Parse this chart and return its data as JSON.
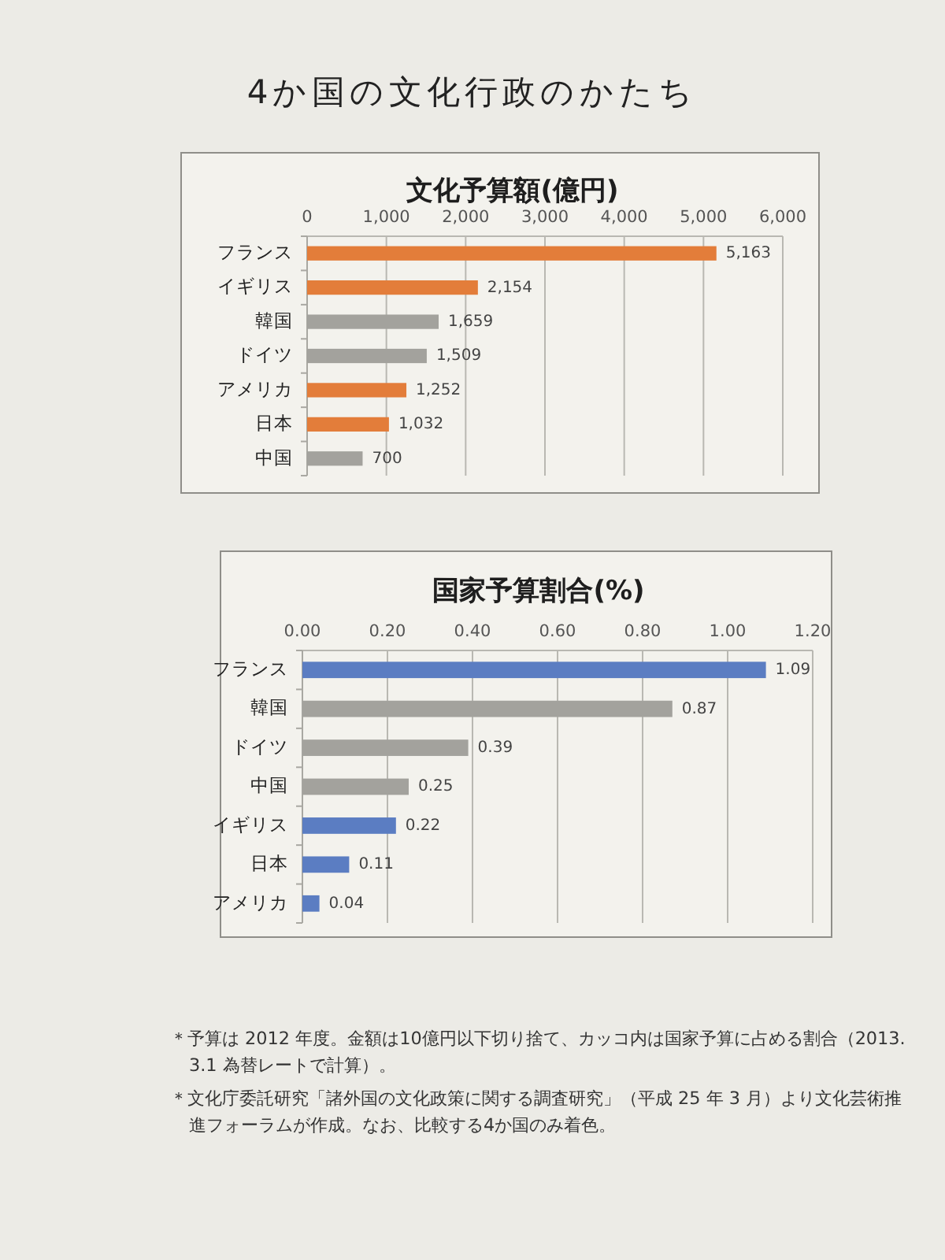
{
  "chart_data": [
    {
      "type": "bar",
      "orientation": "horizontal",
      "title": "文化予算額(億円)",
      "annotations": [
        "4か国の文化行政のかたち"
      ],
      "categories": [
        "フランス",
        "イギリス",
        "韓国",
        "ドイツ",
        "アメリカ",
        "日本",
        "中国"
      ],
      "values": [
        5163,
        2154,
        1659,
        1509,
        1252,
        1032,
        700
      ],
      "value_labels": [
        "5,163",
        "2,154",
        "1,659",
        "1,509",
        "1,252",
        "1,032",
        "700"
      ],
      "colors": [
        "#e37d3a",
        "#e37d3a",
        "#a3a29d",
        "#a3a29d",
        "#e37d3a",
        "#e37d3a",
        "#a3a29d"
      ],
      "xlim": [
        0,
        6000
      ],
      "xticks": [
        0,
        {
          "value": 1000,
          "label": "1,000"
        },
        {
          "value": 2000,
          "label": "2,000"
        },
        {
          "value": 3000,
          "label": "3,000"
        },
        {
          "value": 4000,
          "label": "4,000"
        },
        {
          "value": 5000,
          "label": "5,000"
        },
        {
          "value": 6000,
          "label": "6,000"
        }
      ],
      "grid": "x"
    },
    {
      "type": "bar",
      "orientation": "horizontal",
      "title": "国家予算割合(%)",
      "annotations": [
        "＊予算は 2012 年度。金額は10億円以下切り捨て、カッコ内は国家予算に占める割合（2013.3.1 為替レートで計算）。",
        "＊文化庁委託研究「諸外国の文化政策に関する調査研究」（平成 25 年 3 月）より文化芸術推進フォーラムが作成。なお、比較する4か国のみ着色。"
      ],
      "categories": [
        "フランス",
        "韓国",
        "ドイツ",
        "中国",
        "イギリス",
        "日本",
        "アメリカ"
      ],
      "values": [
        1.09,
        0.87,
        0.39,
        0.25,
        0.22,
        0.11,
        0.04
      ],
      "data_labels": true,
      "colors": [
        "#5b7dc2",
        "#a3a29d",
        "#a3a29d",
        "#a3a29d",
        "#5b7dc2",
        "#5b7dc2",
        "#5b7dc2"
      ],
      "xlim": [
        0,
        1.2
      ],
      "xticks": [
        {
          "value": 0,
          "label": "0.00"
        },
        {
          "value": 0.2,
          "label": "0.20"
        },
        {
          "value": 0.4,
          "label": "0.40"
        },
        {
          "value": 0.6,
          "label": "0.60"
        },
        {
          "value": 0.8,
          "label": "0.80"
        },
        {
          "value": 1.0,
          "label": "1.00"
        },
        {
          "value": 1.2,
          "label": "1.20"
        }
      ],
      "grid": "x"
    }
  ]
}
